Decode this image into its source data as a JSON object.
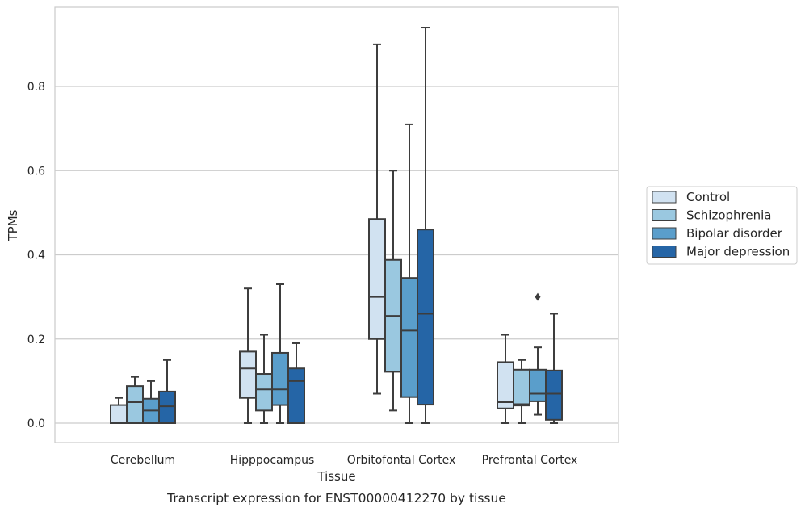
{
  "chart_data": {
    "type": "box",
    "xlabel": "Tissue",
    "ylabel": "TPMs",
    "caption": "Transcript expression for ENST00000412270 by tissue",
    "ylim": [
      -0.045,
      0.99
    ],
    "yticks": [
      0.0,
      0.2,
      0.4,
      0.6,
      0.8
    ],
    "ytick_labels": [
      "0.0",
      "0.2",
      "0.4",
      "0.6",
      "0.8"
    ],
    "grid": "horizontal",
    "legend_position": "outside-right",
    "categories": [
      "Cerebellum",
      "Hipppocampus",
      "Orbitofontal Cortex",
      "Prefrontal Cortex"
    ],
    "series": [
      {
        "name": "Control",
        "color": "#d1e2f1",
        "boxes": [
          {
            "whislo": 0.0,
            "q1": 0.0,
            "med": 0.0,
            "q3": 0.043,
            "whishi": 0.06,
            "fliers": []
          },
          {
            "whislo": 0.0,
            "q1": 0.06,
            "med": 0.13,
            "q3": 0.17,
            "whishi": 0.32,
            "fliers": []
          },
          {
            "whislo": 0.07,
            "q1": 0.2,
            "med": 0.3,
            "q3": 0.485,
            "whishi": 0.9,
            "fliers": []
          },
          {
            "whislo": 0.0,
            "q1": 0.035,
            "med": 0.05,
            "q3": 0.145,
            "whishi": 0.21,
            "fliers": []
          }
        ]
      },
      {
        "name": "Schizophrenia",
        "color": "#9ac8e0",
        "boxes": [
          {
            "whislo": 0.0,
            "q1": 0.0,
            "med": 0.05,
            "q3": 0.088,
            "whishi": 0.11,
            "fliers": []
          },
          {
            "whislo": 0.0,
            "q1": 0.03,
            "med": 0.08,
            "q3": 0.117,
            "whishi": 0.21,
            "fliers": []
          },
          {
            "whislo": 0.03,
            "q1": 0.122,
            "med": 0.255,
            "q3": 0.388,
            "whishi": 0.6,
            "fliers": []
          },
          {
            "whislo": 0.0,
            "q1": 0.042,
            "med": 0.045,
            "q3": 0.127,
            "whishi": 0.15,
            "fliers": []
          }
        ]
      },
      {
        "name": "Bipolar disorder",
        "color": "#5a9ecb",
        "boxes": [
          {
            "whislo": 0.0,
            "q1": 0.0,
            "med": 0.03,
            "q3": 0.058,
            "whishi": 0.1,
            "fliers": []
          },
          {
            "whislo": 0.0,
            "q1": 0.043,
            "med": 0.08,
            "q3": 0.167,
            "whishi": 0.33,
            "fliers": []
          },
          {
            "whislo": 0.0,
            "q1": 0.062,
            "med": 0.22,
            "q3": 0.345,
            "whishi": 0.71,
            "fliers": []
          },
          {
            "whislo": 0.02,
            "q1": 0.052,
            "med": 0.07,
            "q3": 0.127,
            "whishi": 0.18,
            "fliers": [
              0.3
            ]
          }
        ]
      },
      {
        "name": "Major depression",
        "color": "#2565a6",
        "boxes": [
          {
            "whislo": 0.0,
            "q1": 0.0,
            "med": 0.04,
            "q3": 0.075,
            "whishi": 0.15,
            "fliers": []
          },
          {
            "whislo": 0.0,
            "q1": 0.0,
            "med": 0.1,
            "q3": 0.13,
            "whishi": 0.19,
            "fliers": []
          },
          {
            "whislo": 0.0,
            "q1": 0.044,
            "med": 0.26,
            "q3": 0.46,
            "whishi": 0.94,
            "fliers": []
          },
          {
            "whislo": 0.0,
            "q1": 0.008,
            "med": 0.07,
            "q3": 0.125,
            "whishi": 0.26,
            "fliers": []
          }
        ]
      }
    ]
  }
}
